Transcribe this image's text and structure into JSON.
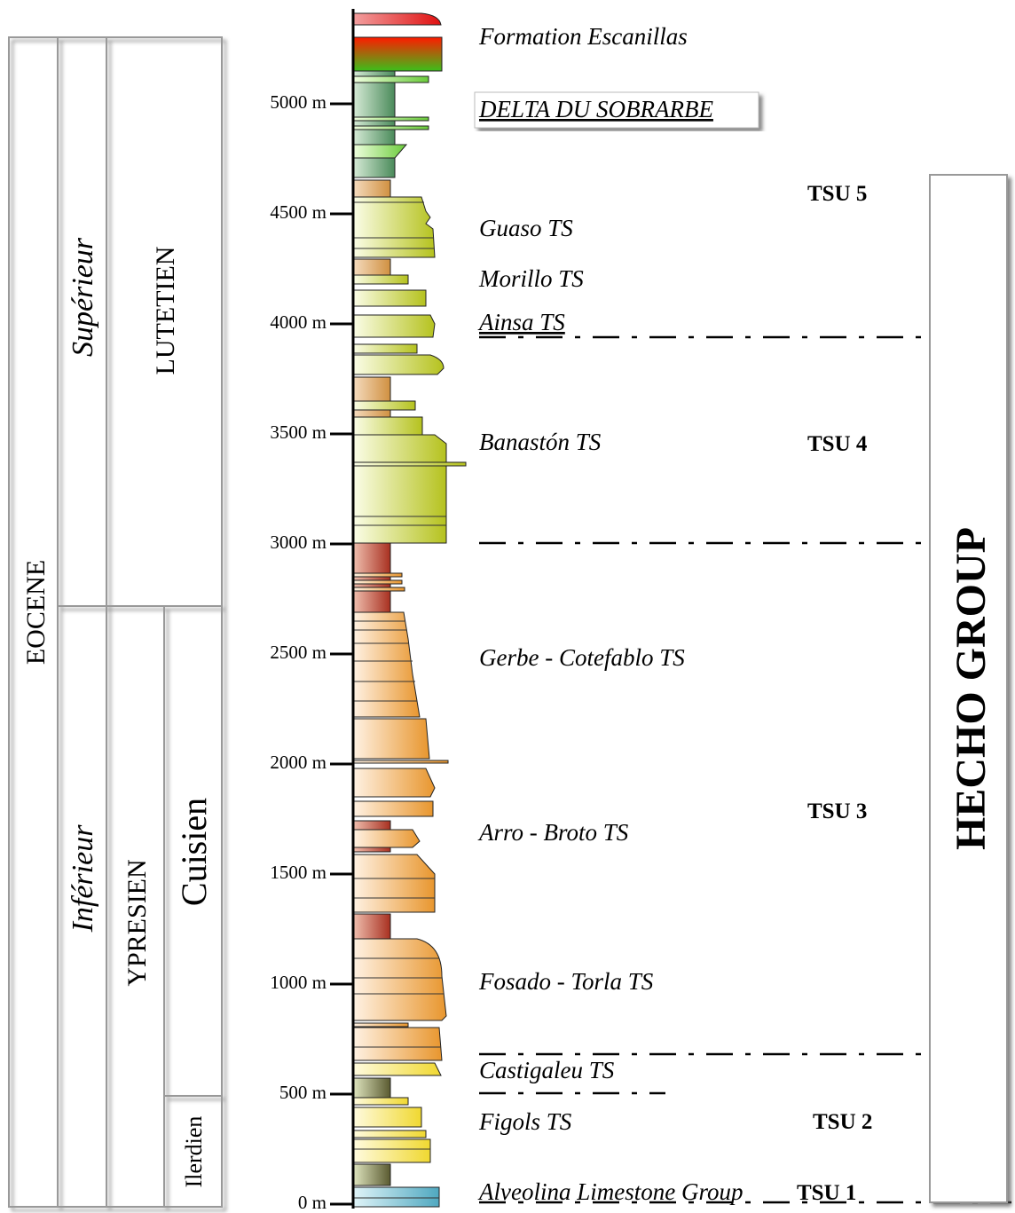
{
  "chronostratigraphy": {
    "epoch": "EOCENE",
    "subepochs": [
      "Supérieur",
      "Inférieur"
    ],
    "stages": [
      "LUTETIEN",
      "YPRESIEN"
    ],
    "substages": [
      "Cuisien",
      "Ilerdien"
    ]
  },
  "depth_axis": {
    "ticks": [
      {
        "value": 0,
        "label": "0 m"
      },
      {
        "value": 500,
        "label": "500 m"
      },
      {
        "value": 1000,
        "label": "1000 m"
      },
      {
        "value": 1500,
        "label": "1500 m"
      },
      {
        "value": 2000,
        "label": "2000 m"
      },
      {
        "value": 2500,
        "label": "2500 m"
      },
      {
        "value": 3000,
        "label": "3000 m"
      },
      {
        "value": 3500,
        "label": "3500 m"
      },
      {
        "value": 4000,
        "label": "4000 m"
      },
      {
        "value": 4500,
        "label": "4500 m"
      },
      {
        "value": 5000,
        "label": "5000 m"
      }
    ]
  },
  "formations": [
    "Formation Escanillas",
    "DELTA DU SOBRARBE",
    "Guaso TS",
    "Morillo TS",
    "Ainsa TS",
    "Banastón TS",
    "Gerbe - Cotefablo TS",
    "Arro - Broto TS",
    "Fosado - Torla TS",
    "Castigaleu TS",
    "Figols TS",
    "Alveolina Limestone Group"
  ],
  "units": [
    "TSU 5",
    "TSU 4",
    "TSU 3",
    "TSU 2",
    "TSU 1"
  ],
  "group": "HECHO GROUP"
}
